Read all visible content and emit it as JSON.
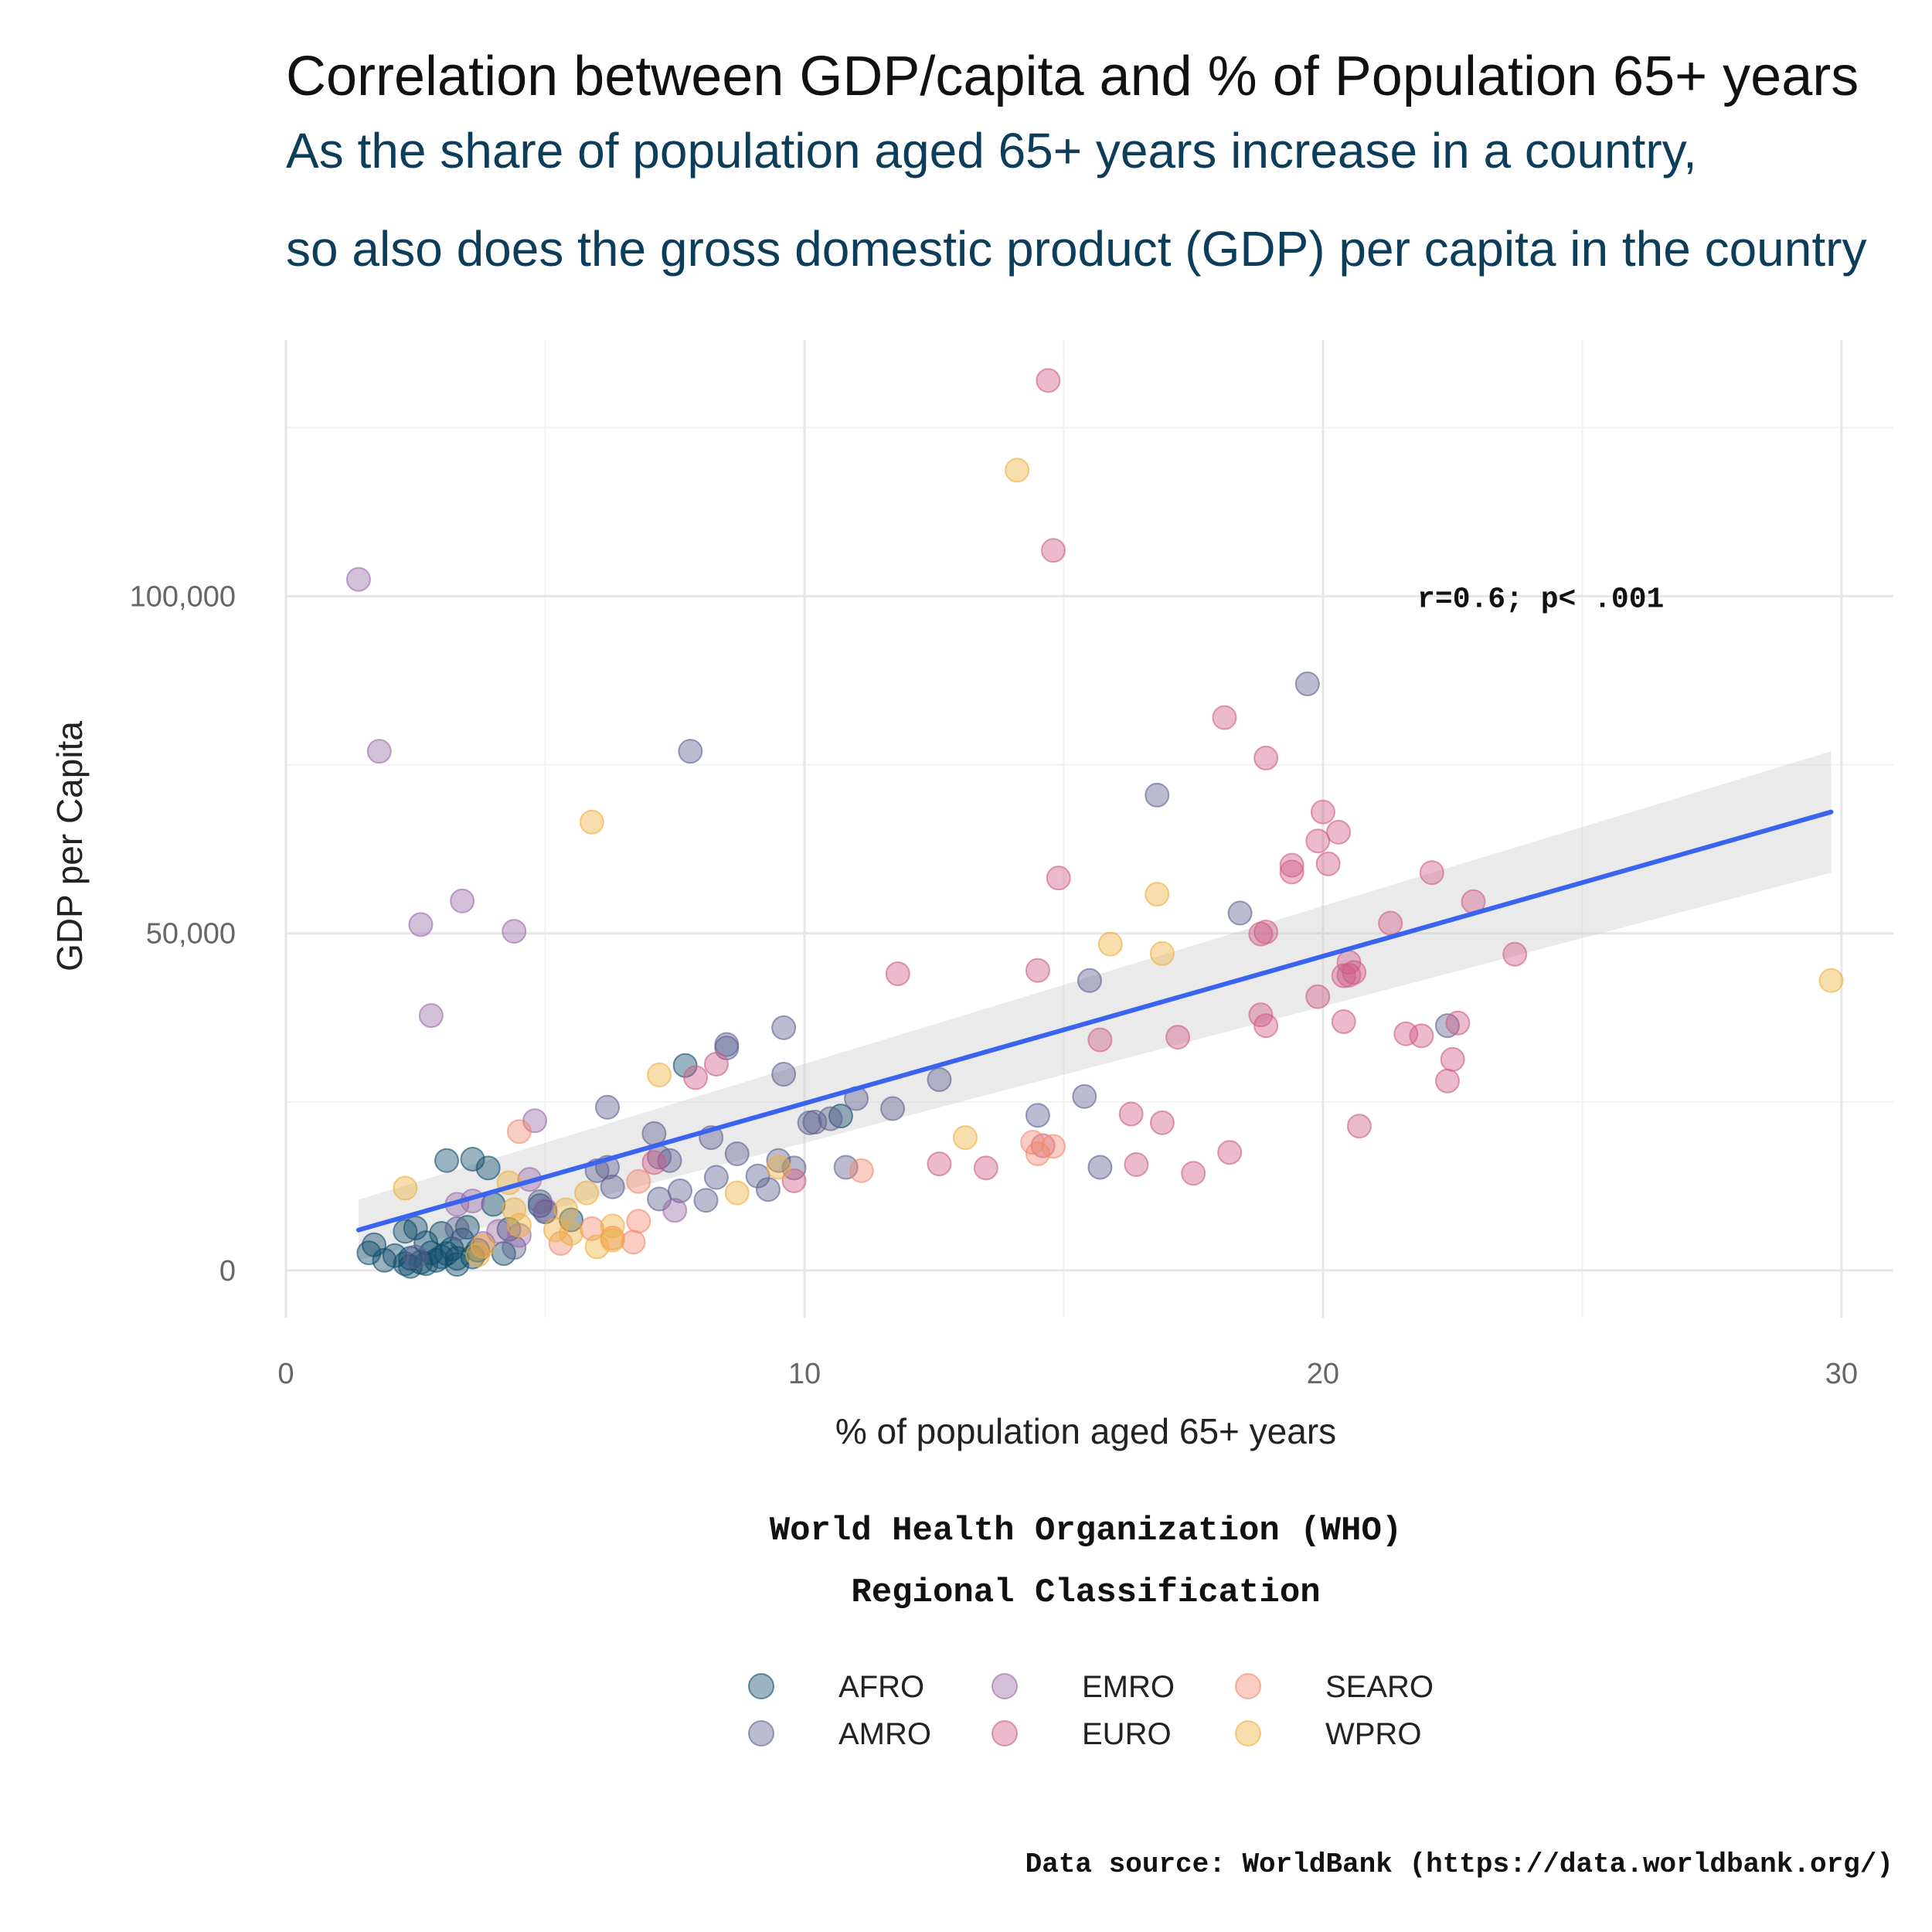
{
  "chart_data": {
    "type": "scatter",
    "title": "Correlation between GDP/capita and % of Population 65+ years",
    "subtitle": [
      "As the share of population aged 65+ years increase in a country,",
      "so also does the gross domestic product (GDP) per capita in the country"
    ],
    "xlabel": "% of population aged 65+ years",
    "ylabel": "GDP per Capita",
    "xlim": [
      0,
      31
    ],
    "ylim": [
      -7000,
      138000
    ],
    "x_ticks": [
      0,
      10,
      20,
      30
    ],
    "x_tick_labels": [
      "0",
      "10",
      "20",
      "30"
    ],
    "y_ticks": [
      0,
      50000,
      100000
    ],
    "y_tick_labels": [
      "0",
      "50,000",
      "100,000"
    ],
    "grid": true,
    "annotation": {
      "text": "r=0.6; p< .001",
      "x": 24.2,
      "y": 99800
    },
    "legend": {
      "title": [
        "World Health Organization (WHO)",
        "Regional Classification"
      ],
      "placement": "bottom",
      "entries": [
        "AFRO",
        "EMRO",
        "SEARO",
        "AMRO",
        "EURO",
        "WPRO"
      ]
    },
    "trend": {
      "x": [
        1.4,
        29.8
      ],
      "y": [
        6000,
        68000
      ],
      "ci_low": [
        1500,
        59000
      ],
      "ci_high": [
        10500,
        77000
      ],
      "color": "#3a63f0"
    },
    "series": [
      {
        "name": "AFRO",
        "color": "#0f4c6b",
        "points": [
          [
            1.6,
            2600
          ],
          [
            1.7,
            3800
          ],
          [
            1.9,
            1500
          ],
          [
            2.1,
            2200
          ],
          [
            2.3,
            1000
          ],
          [
            2.3,
            5800
          ],
          [
            2.4,
            1800
          ],
          [
            2.5,
            6300
          ],
          [
            2.6,
            1200
          ],
          [
            2.7,
            4100
          ],
          [
            2.8,
            2600
          ],
          [
            2.9,
            1500
          ],
          [
            3.0,
            2000
          ],
          [
            3.0,
            5500
          ],
          [
            3.1,
            2500
          ],
          [
            3.1,
            16300
          ],
          [
            3.2,
            3200
          ],
          [
            3.3,
            1800
          ],
          [
            3.4,
            4500
          ],
          [
            3.5,
            6400
          ],
          [
            3.6,
            16500
          ],
          [
            3.7,
            3000
          ],
          [
            3.9,
            15200
          ],
          [
            4.0,
            9800
          ],
          [
            4.2,
            2500
          ],
          [
            4.3,
            6100
          ],
          [
            4.9,
            9600
          ],
          [
            5.5,
            7500
          ],
          [
            7.7,
            30400
          ],
          [
            10.7,
            22900
          ],
          [
            2.4,
            600
          ],
          [
            2.7,
            1000
          ],
          [
            3.3,
            900
          ],
          [
            3.6,
            2000
          ],
          [
            5.0,
            8700
          ]
        ]
      },
      {
        "name": "AMRO",
        "color": "#5c5f8f",
        "points": [
          [
            2.5,
            2000
          ],
          [
            3.3,
            6200
          ],
          [
            4.4,
            3400
          ],
          [
            4.9,
            10200
          ],
          [
            6.2,
            24200
          ],
          [
            6.0,
            14800
          ],
          [
            6.3,
            12400
          ],
          [
            7.1,
            20300
          ],
          [
            7.2,
            16800
          ],
          [
            7.4,
            16300
          ],
          [
            7.6,
            11800
          ],
          [
            7.8,
            77000
          ],
          [
            8.1,
            10400
          ],
          [
            8.2,
            19700
          ],
          [
            8.3,
            13800
          ],
          [
            8.5,
            33500
          ],
          [
            8.5,
            33000
          ],
          [
            8.7,
            17300
          ],
          [
            9.1,
            14000
          ],
          [
            9.3,
            12000
          ],
          [
            9.5,
            16300
          ],
          [
            9.6,
            29100
          ],
          [
            9.6,
            36000
          ],
          [
            9.8,
            15200
          ],
          [
            10.1,
            21900
          ],
          [
            10.2,
            22000
          ],
          [
            10.5,
            22500
          ],
          [
            10.8,
            15300
          ],
          [
            11.0,
            25500
          ],
          [
            11.7,
            24000
          ],
          [
            12.6,
            28300
          ],
          [
            14.5,
            23000
          ],
          [
            15.4,
            25800
          ],
          [
            15.5,
            43000
          ],
          [
            15.7,
            15300
          ],
          [
            16.8,
            70500
          ],
          [
            18.4,
            53000
          ],
          [
            19.7,
            87000
          ],
          [
            22.4,
            36300
          ],
          [
            6.2,
            15300
          ],
          [
            7.2,
            10600
          ]
        ]
      },
      {
        "name": "EMRO",
        "color": "#9a68a8",
        "points": [
          [
            1.4,
            102500
          ],
          [
            1.8,
            77000
          ],
          [
            2.6,
            51300
          ],
          [
            2.8,
            37800
          ],
          [
            3.4,
            54800
          ],
          [
            4.4,
            50300
          ],
          [
            4.8,
            22200
          ],
          [
            3.3,
            9800
          ],
          [
            3.6,
            10300
          ],
          [
            4.1,
            5800
          ],
          [
            4.5,
            5200
          ],
          [
            4.7,
            13500
          ],
          [
            5.0,
            9000
          ],
          [
            7.5,
            8900
          ],
          [
            3.8,
            4000
          ]
        ]
      },
      {
        "name": "EURO",
        "color": "#cf5b86",
        "points": [
          [
            7.1,
            16000
          ],
          [
            7.9,
            28600
          ],
          [
            8.3,
            30600
          ],
          [
            9.8,
            13300
          ],
          [
            11.8,
            44000
          ],
          [
            12.6,
            15800
          ],
          [
            13.5,
            15200
          ],
          [
            14.5,
            44500
          ],
          [
            14.7,
            132000
          ],
          [
            14.8,
            106800
          ],
          [
            14.9,
            58200
          ],
          [
            14.6,
            18500
          ],
          [
            15.7,
            34200
          ],
          [
            16.3,
            23200
          ],
          [
            16.4,
            15700
          ],
          [
            16.9,
            21900
          ],
          [
            17.2,
            34600
          ],
          [
            17.5,
            14400
          ],
          [
            18.1,
            82000
          ],
          [
            18.2,
            17500
          ],
          [
            18.8,
            49900
          ],
          [
            18.8,
            37900
          ],
          [
            18.9,
            50200
          ],
          [
            18.9,
            36300
          ],
          [
            18.9,
            76000
          ],
          [
            19.4,
            59100
          ],
          [
            19.4,
            60100
          ],
          [
            19.9,
            40600
          ],
          [
            19.9,
            63700
          ],
          [
            20.0,
            68000
          ],
          [
            20.1,
            60300
          ],
          [
            20.3,
            65000
          ],
          [
            20.4,
            43700
          ],
          [
            20.4,
            36900
          ],
          [
            20.5,
            45700
          ],
          [
            20.5,
            43800
          ],
          [
            20.6,
            44200
          ],
          [
            20.7,
            21400
          ],
          [
            21.3,
            51500
          ],
          [
            21.6,
            35100
          ],
          [
            21.9,
            34800
          ],
          [
            22.1,
            59000
          ],
          [
            22.4,
            28100
          ],
          [
            22.5,
            31300
          ],
          [
            22.6,
            36700
          ],
          [
            22.9,
            54700
          ],
          [
            23.7,
            46900
          ]
        ]
      },
      {
        "name": "SEARO",
        "color": "#f0896e",
        "points": [
          [
            4.5,
            20600
          ],
          [
            5.3,
            4000
          ],
          [
            5.9,
            6200
          ],
          [
            6.3,
            4800
          ],
          [
            6.7,
            4200
          ],
          [
            6.8,
            7300
          ],
          [
            6.8,
            13200
          ],
          [
            11.1,
            14800
          ],
          [
            14.4,
            19000
          ],
          [
            14.5,
            17300
          ],
          [
            14.8,
            18400
          ]
        ]
      },
      {
        "name": "WPRO",
        "color": "#eeae3c",
        "points": [
          [
            2.3,
            12200
          ],
          [
            3.7,
            2300
          ],
          [
            3.8,
            3600
          ],
          [
            4.3,
            13000
          ],
          [
            4.4,
            9000
          ],
          [
            4.5,
            6700
          ],
          [
            5.2,
            6000
          ],
          [
            5.4,
            9000
          ],
          [
            5.5,
            5500
          ],
          [
            5.8,
            11500
          ],
          [
            5.9,
            66500
          ],
          [
            6.0,
            3500
          ],
          [
            6.3,
            6600
          ],
          [
            6.3,
            4500
          ],
          [
            7.2,
            29000
          ],
          [
            8.7,
            11500
          ],
          [
            9.5,
            15300
          ],
          [
            13.1,
            19700
          ],
          [
            14.1,
            118700
          ],
          [
            15.9,
            48400
          ],
          [
            16.8,
            55800
          ],
          [
            16.9,
            47000
          ],
          [
            29.8,
            43000
          ]
        ]
      }
    ]
  },
  "footer": {
    "source": "Data source: WorldBank (https://data.worldbank.org/)"
  }
}
